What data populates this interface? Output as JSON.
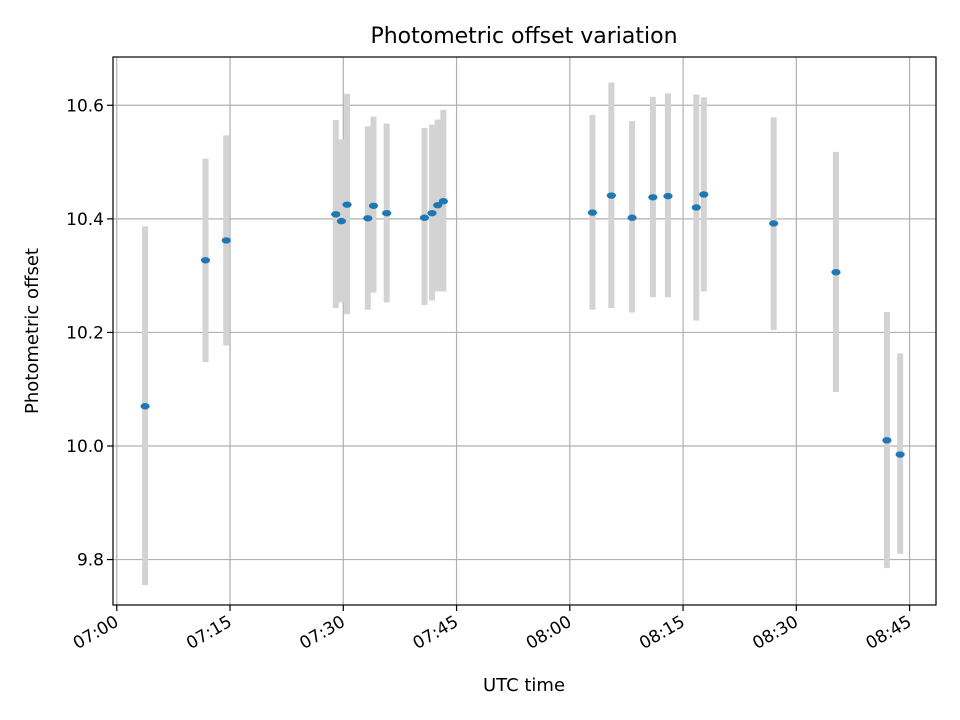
{
  "chart_data": {
    "type": "scatter",
    "title": "Photometric offset variation",
    "xlabel": "UTC time",
    "ylabel": "Photometric offset",
    "xlim": [
      "06:59:30",
      "08:48:30"
    ],
    "ylim": [
      9.72,
      10.685
    ],
    "grid": true,
    "x_ticks": [
      "07:00",
      "07:15",
      "07:30",
      "07:45",
      "08:00",
      "08:15",
      "08:30",
      "08:45"
    ],
    "y_ticks": [
      "9.8",
      "10.0",
      "10.2",
      "10.4",
      "10.6"
    ],
    "series": [
      {
        "marker_color": "#1f77b4",
        "errorbar_color": "#d3d3d3",
        "points": [
          {
            "x": "07:03:45",
            "y": 10.07,
            "yerr_low": 9.755,
            "yerr_high": 10.387
          },
          {
            "x": "07:11:45",
            "y": 10.327,
            "yerr_low": 10.148,
            "yerr_high": 10.506
          },
          {
            "x": "07:14:30",
            "y": 10.362,
            "yerr_low": 10.177,
            "yerr_high": 10.547
          },
          {
            "x": "07:29:00",
            "y": 10.408,
            "yerr_low": 10.243,
            "yerr_high": 10.574
          },
          {
            "x": "07:29:45",
            "y": 10.396,
            "yerr_low": 10.253,
            "yerr_high": 10.54
          },
          {
            "x": "07:30:30",
            "y": 10.425,
            "yerr_low": 10.232,
            "yerr_high": 10.62
          },
          {
            "x": "07:33:15",
            "y": 10.401,
            "yerr_low": 10.24,
            "yerr_high": 10.563
          },
          {
            "x": "07:34:00",
            "y": 10.423,
            "yerr_low": 10.27,
            "yerr_high": 10.58
          },
          {
            "x": "07:35:45",
            "y": 10.41,
            "yerr_low": 10.253,
            "yerr_high": 10.568
          },
          {
            "x": "07:40:45",
            "y": 10.402,
            "yerr_low": 10.248,
            "yerr_high": 10.56
          },
          {
            "x": "07:41:45",
            "y": 10.41,
            "yerr_low": 10.256,
            "yerr_high": 10.566
          },
          {
            "x": "07:42:30",
            "y": 10.424,
            "yerr_low": 10.272,
            "yerr_high": 10.575
          },
          {
            "x": "07:43:15",
            "y": 10.431,
            "yerr_low": 10.272,
            "yerr_high": 10.592
          },
          {
            "x": "08:03:00",
            "y": 10.411,
            "yerr_low": 10.24,
            "yerr_high": 10.583
          },
          {
            "x": "08:05:30",
            "y": 10.441,
            "yerr_low": 10.243,
            "yerr_high": 10.64
          },
          {
            "x": "08:08:15",
            "y": 10.402,
            "yerr_low": 10.235,
            "yerr_high": 10.572
          },
          {
            "x": "08:11:00",
            "y": 10.438,
            "yerr_low": 10.262,
            "yerr_high": 10.615
          },
          {
            "x": "08:13:00",
            "y": 10.44,
            "yerr_low": 10.262,
            "yerr_high": 10.621
          },
          {
            "x": "08:16:45",
            "y": 10.42,
            "yerr_low": 10.221,
            "yerr_high": 10.619
          },
          {
            "x": "08:17:45",
            "y": 10.443,
            "yerr_low": 10.272,
            "yerr_high": 10.614
          },
          {
            "x": "08:27:00",
            "y": 10.392,
            "yerr_low": 10.204,
            "yerr_high": 10.579
          },
          {
            "x": "08:35:15",
            "y": 10.306,
            "yerr_low": 10.095,
            "yerr_high": 10.518
          },
          {
            "x": "08:42:00",
            "y": 10.01,
            "yerr_low": 9.785,
            "yerr_high": 10.236
          },
          {
            "x": "08:43:45",
            "y": 9.985,
            "yerr_low": 9.81,
            "yerr_high": 10.163
          }
        ]
      }
    ]
  }
}
